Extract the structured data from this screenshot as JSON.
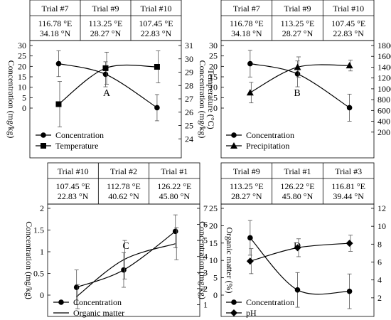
{
  "chart_data": [
    {
      "type": "line",
      "panel_label": "A",
      "trials": [
        {
          "name": "Trial #7",
          "lon": "116.78 °E",
          "lat": "34.18 °N"
        },
        {
          "name": "Trial #9",
          "lon": "113.25 °E",
          "lat": "28.27 °N"
        },
        {
          "name": "Trial #10",
          "lon": "107.45 °E",
          "lat": "22.83 °N"
        }
      ],
      "ylabel": "Concentration (mg/kg)",
      "y2label": "Temperature (°C)",
      "ylim": [
        0,
        30
      ],
      "yticks": [
        0,
        5,
        10,
        15,
        20,
        25,
        30
      ],
      "y2lim": [
        23,
        31
      ],
      "y2ticks": [
        24,
        25,
        26,
        27,
        28,
        29,
        30,
        31
      ],
      "series": [
        {
          "name": "Concentration",
          "axis": "left",
          "marker": "circle",
          "values": [
            21.3,
            16.2,
            0.2
          ],
          "errors": [
            6.2,
            6.0,
            6.3
          ]
        },
        {
          "name": "Temperature",
          "axis": "right",
          "marker": "square",
          "values": [
            26.6,
            29.3,
            29.4
          ],
          "errors": [
            1.7,
            1.2,
            1.2
          ]
        }
      ]
    },
    {
      "type": "line",
      "panel_label": "B",
      "trials": [
        {
          "name": "Trial #7",
          "lon": "116.78 °E",
          "lat": "34.18 °N"
        },
        {
          "name": "Trial #9",
          "lon": "113.25 °E",
          "lat": "28.27 °N"
        },
        {
          "name": "Trial #10",
          "lon": "107.45 °E",
          "lat": "22.83 °N"
        }
      ],
      "ylabel": "Concentration (mg/kg)",
      "y2label": "Precipitation (mm)",
      "ylim": [
        0,
        30
      ],
      "yticks": [
        0,
        5,
        10,
        15,
        20,
        25,
        30
      ],
      "y2lim": [
        0,
        1800
      ],
      "y2ticks": [
        200,
        400,
        600,
        800,
        1000,
        1200,
        1400,
        1600,
        1800
      ],
      "series": [
        {
          "name": "Concentration",
          "axis": "left",
          "marker": "circle",
          "values": [
            21.3,
            16.4,
            0.2
          ],
          "errors": [
            6.4,
            6.2,
            6.5
          ]
        },
        {
          "name": "Precipitation",
          "axis": "right",
          "marker": "triangle",
          "values": [
            930,
            1400,
            1430
          ],
          "errors": [
            190,
            190,
            100
          ]
        }
      ]
    },
    {
      "type": "line",
      "panel_label": "C",
      "trials": [
        {
          "name": "Trial #10",
          "lon": "107.45 °E",
          "lat": "22.83 °N"
        },
        {
          "name": "Trial #2",
          "lon": "112.78 °E",
          "lat": "40.62 °N"
        },
        {
          "name": "Trial #1",
          "lon": "126.22 °E",
          "lat": "45.80 °N"
        }
      ],
      "ylabel": "Concentration (mg/kg)",
      "y2label": "Organic matter (%)",
      "ylim": [
        0,
        2
      ],
      "yticks": [
        0,
        0.5,
        1,
        1.5,
        2
      ],
      "y2lim": [
        0,
        7
      ],
      "y2ticks": [
        1,
        2,
        3,
        4,
        5,
        6,
        7
      ],
      "series": [
        {
          "name": "Concentration",
          "axis": "left",
          "marker": "circle",
          "values": [
            0.18,
            0.58,
            1.47
          ],
          "errors": [
            0.4,
            0.4,
            0.38
          ]
        },
        {
          "name": "Organic matter",
          "axis": "right",
          "marker": "none",
          "values": [
            1.5,
            3.8,
            4.8
          ],
          "errors": [
            0.75,
            1.2,
            1.0
          ]
        }
      ]
    },
    {
      "type": "line",
      "panel_label": "D",
      "trials": [
        {
          "name": "Trial #9",
          "lon": "113.25 °E",
          "lat": "28.27 °N"
        },
        {
          "name": "Trial #1",
          "lon": "126.22 °E",
          "lat": "45.80 °N"
        },
        {
          "name": "Trial #3",
          "lon": "116.81 °E",
          "lat": "39.44 °N"
        }
      ],
      "ylabel": "Concentration (mg/kg)",
      "y2label": "pH",
      "ylim": [
        0,
        25
      ],
      "yticks": [
        0,
        5,
        10,
        15,
        20,
        25
      ],
      "y2lim": [
        0,
        12
      ],
      "y2ticks": [
        2,
        4,
        6,
        8,
        10,
        12
      ],
      "series": [
        {
          "name": "Concentration",
          "axis": "left",
          "marker": "circle",
          "values": [
            16.5,
            1.5,
            1.1
          ],
          "errors": [
            5.0,
            5.0,
            5.0
          ]
        },
        {
          "name": "pH",
          "axis": "right",
          "marker": "diamond",
          "values": [
            6.1,
            7.6,
            8.1
          ],
          "errors": [
            1.4,
            1.0,
            0.9
          ]
        }
      ]
    }
  ]
}
